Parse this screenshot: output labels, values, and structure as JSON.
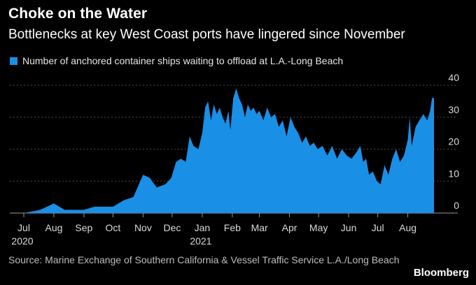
{
  "header": {
    "title": "Choke on the Water",
    "subtitle": "Bottlenecks at key West Coast ports have lingered since November"
  },
  "legend": {
    "label": "Number of anchored container ships waiting to offload at L.A.-Long Beach"
  },
  "footer": {
    "source": "Source: Marine Exchange of Southern California & Vessel Traffic Service L.A./Long Beach",
    "brand": "Bloomberg"
  },
  "colors": {
    "background": "#000000",
    "series": "#1a8fe6",
    "grid": "#4a4a4a",
    "text": "#ffffff"
  },
  "chart_data": {
    "type": "area",
    "title": "Choke on the Water",
    "subtitle": "Bottlenecks at key West Coast ports have lingered since November",
    "ylim": [
      0,
      40
    ],
    "y_ticks": [
      0,
      10,
      20,
      30,
      40
    ],
    "y_axis_side": "right",
    "grid": true,
    "legend_position": "top-left",
    "x_ticks": [
      {
        "label": "Jul",
        "sub": "2020",
        "x": "2020-07-01"
      },
      {
        "label": "Aug",
        "sub": "",
        "x": "2020-08-01"
      },
      {
        "label": "Sep",
        "sub": "",
        "x": "2020-09-01"
      },
      {
        "label": "Oct",
        "sub": "",
        "x": "2020-10-01"
      },
      {
        "label": "Nov",
        "sub": "",
        "x": "2020-11-01"
      },
      {
        "label": "Dec",
        "sub": "",
        "x": "2020-12-01"
      },
      {
        "label": "Jan",
        "sub": "2021",
        "x": "2021-01-01"
      },
      {
        "label": "Feb",
        "sub": "",
        "x": "2021-02-01"
      },
      {
        "label": "Mar",
        "sub": "",
        "x": "2021-03-01"
      },
      {
        "label": "Apr",
        "sub": "",
        "x": "2021-04-01"
      },
      {
        "label": "May",
        "sub": "",
        "x": "2021-05-01"
      },
      {
        "label": "Jun",
        "sub": "",
        "x": "2021-06-01"
      },
      {
        "label": "Jul",
        "sub": "",
        "x": "2021-07-01"
      },
      {
        "label": "Aug",
        "sub": "",
        "x": "2021-08-01"
      }
    ],
    "series": [
      {
        "name": "Number of anchored container ships waiting to offload at L.A.-Long Beach",
        "points": [
          [
            "2020-07-01",
            0
          ],
          [
            "2020-07-18",
            1
          ],
          [
            "2020-08-01",
            3
          ],
          [
            "2020-08-12",
            1
          ],
          [
            "2020-09-01",
            1
          ],
          [
            "2020-09-12",
            2
          ],
          [
            "2020-10-01",
            2
          ],
          [
            "2020-10-12",
            4
          ],
          [
            "2020-10-22",
            5
          ],
          [
            "2020-11-01",
            12
          ],
          [
            "2020-11-08",
            11
          ],
          [
            "2020-11-15",
            8
          ],
          [
            "2020-11-24",
            9
          ],
          [
            "2020-11-30",
            11
          ],
          [
            "2020-12-05",
            16
          ],
          [
            "2020-12-10",
            17
          ],
          [
            "2020-12-15",
            16
          ],
          [
            "2020-12-19",
            24
          ],
          [
            "2020-12-23",
            21
          ],
          [
            "2020-12-28",
            20
          ],
          [
            "2021-01-01",
            25
          ],
          [
            "2021-01-04",
            33
          ],
          [
            "2021-01-07",
            35
          ],
          [
            "2021-01-10",
            29
          ],
          [
            "2021-01-13",
            34
          ],
          [
            "2021-01-16",
            31
          ],
          [
            "2021-01-19",
            33
          ],
          [
            "2021-01-22",
            30
          ],
          [
            "2021-01-25",
            28
          ],
          [
            "2021-01-28",
            32
          ],
          [
            "2021-01-30",
            26
          ],
          [
            "2021-02-02",
            36
          ],
          [
            "2021-02-05",
            39
          ],
          [
            "2021-02-08",
            36
          ],
          [
            "2021-02-11",
            34
          ],
          [
            "2021-02-14",
            30
          ],
          [
            "2021-02-17",
            34
          ],
          [
            "2021-02-20",
            32
          ],
          [
            "2021-02-23",
            33
          ],
          [
            "2021-02-26",
            31
          ],
          [
            "2021-03-01",
            32
          ],
          [
            "2021-03-05",
            29
          ],
          [
            "2021-03-09",
            33
          ],
          [
            "2021-03-13",
            30
          ],
          [
            "2021-03-17",
            31
          ],
          [
            "2021-03-21",
            27
          ],
          [
            "2021-03-25",
            29
          ],
          [
            "2021-03-29",
            24
          ],
          [
            "2021-04-02",
            30
          ],
          [
            "2021-04-06",
            27
          ],
          [
            "2021-04-10",
            25
          ],
          [
            "2021-04-14",
            22
          ],
          [
            "2021-04-18",
            24
          ],
          [
            "2021-04-22",
            21
          ],
          [
            "2021-04-26",
            22
          ],
          [
            "2021-04-30",
            20
          ],
          [
            "2021-05-05",
            21
          ],
          [
            "2021-05-10",
            18
          ],
          [
            "2021-05-15",
            21
          ],
          [
            "2021-05-20",
            17
          ],
          [
            "2021-05-25",
            20
          ],
          [
            "2021-05-30",
            18
          ],
          [
            "2021-06-04",
            17
          ],
          [
            "2021-06-09",
            19
          ],
          [
            "2021-06-13",
            21
          ],
          [
            "2021-06-16",
            16
          ],
          [
            "2021-06-19",
            17
          ],
          [
            "2021-06-22",
            12
          ],
          [
            "2021-06-26",
            13
          ],
          [
            "2021-06-30",
            10
          ],
          [
            "2021-07-04",
            9
          ],
          [
            "2021-07-08",
            15
          ],
          [
            "2021-07-12",
            12
          ],
          [
            "2021-07-16",
            17
          ],
          [
            "2021-07-20",
            20
          ],
          [
            "2021-07-24",
            16
          ],
          [
            "2021-07-28",
            18
          ],
          [
            "2021-08-01",
            23
          ],
          [
            "2021-08-03",
            30
          ],
          [
            "2021-08-05",
            21
          ],
          [
            "2021-08-09",
            27
          ],
          [
            "2021-08-13",
            29
          ],
          [
            "2021-08-17",
            31
          ],
          [
            "2021-08-21",
            29
          ],
          [
            "2021-08-24",
            32
          ],
          [
            "2021-08-26",
            36
          ],
          [
            "2021-08-28",
            36
          ]
        ]
      }
    ]
  }
}
